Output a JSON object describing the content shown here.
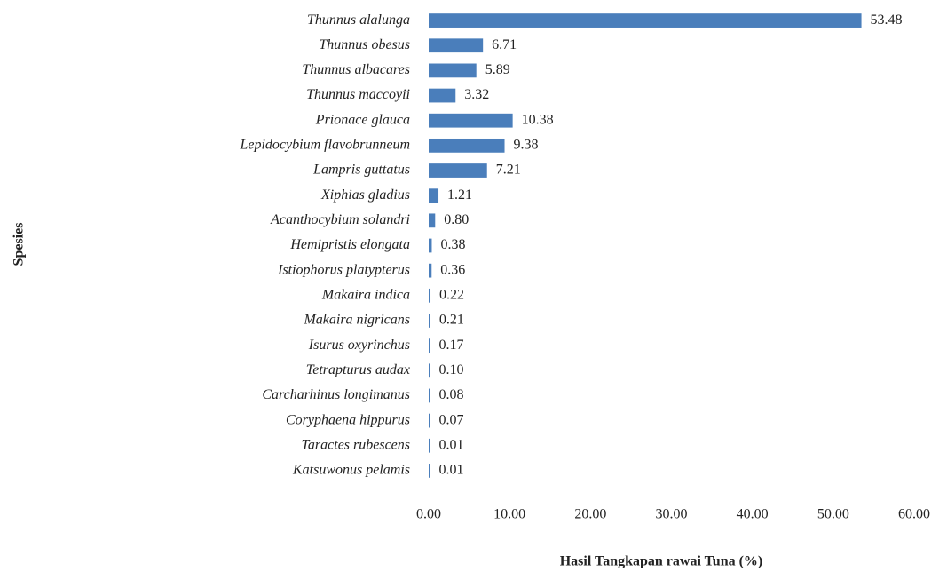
{
  "chart_data": {
    "type": "barh",
    "xlabel": "Hasil Tangkapan rawai Tuna (%)",
    "ylabel": "Spesies",
    "categories": [
      "Thunnus alalunga",
      "Thunnus obesus",
      "Thunnus albacares",
      "Thunnus maccoyii",
      "Prionace glauca",
      "Lepidocybium flavobrunneum",
      "Lampris guttatus",
      "Xiphias gladius",
      "Acanthocybium solandri",
      "Hemipristis elongata",
      "Istiophorus platypterus",
      "Makaira indica",
      "Makaira nigricans",
      "Isurus oxyrinchus",
      "Tetrapturus audax",
      "Carcharhinus longimanus",
      "Coryphaena hippurus",
      "Taractes rubescens",
      "Katsuwonus pelamis"
    ],
    "values": [
      53.48,
      6.71,
      5.89,
      3.32,
      10.38,
      9.38,
      7.21,
      1.21,
      0.8,
      0.38,
      0.36,
      0.22,
      0.21,
      0.17,
      0.1,
      0.08,
      0.07,
      0.01,
      0.01
    ],
    "value_labels": [
      "53.48",
      "6.71",
      "5.89",
      "3.32",
      "10.38",
      "9.38",
      "7.21",
      "1.21",
      "0.80",
      "0.38",
      "0.36",
      "0.22",
      "0.21",
      "0.17",
      "0.10",
      "0.08",
      "0.07",
      "0.01",
      "0.01"
    ],
    "color": "#4a7ebb",
    "xlim": [
      0,
      60
    ],
    "xticks": [
      {
        "value": 0,
        "label": "0.00"
      },
      {
        "value": 10,
        "label": "10.00"
      },
      {
        "value": 20,
        "label": "20.00"
      },
      {
        "value": 30,
        "label": "30.00"
      },
      {
        "value": 40,
        "label": "40.00"
      },
      {
        "value": 50,
        "label": "50.00"
      },
      {
        "value": 60,
        "label": "60.00"
      }
    ],
    "grid": false
  }
}
